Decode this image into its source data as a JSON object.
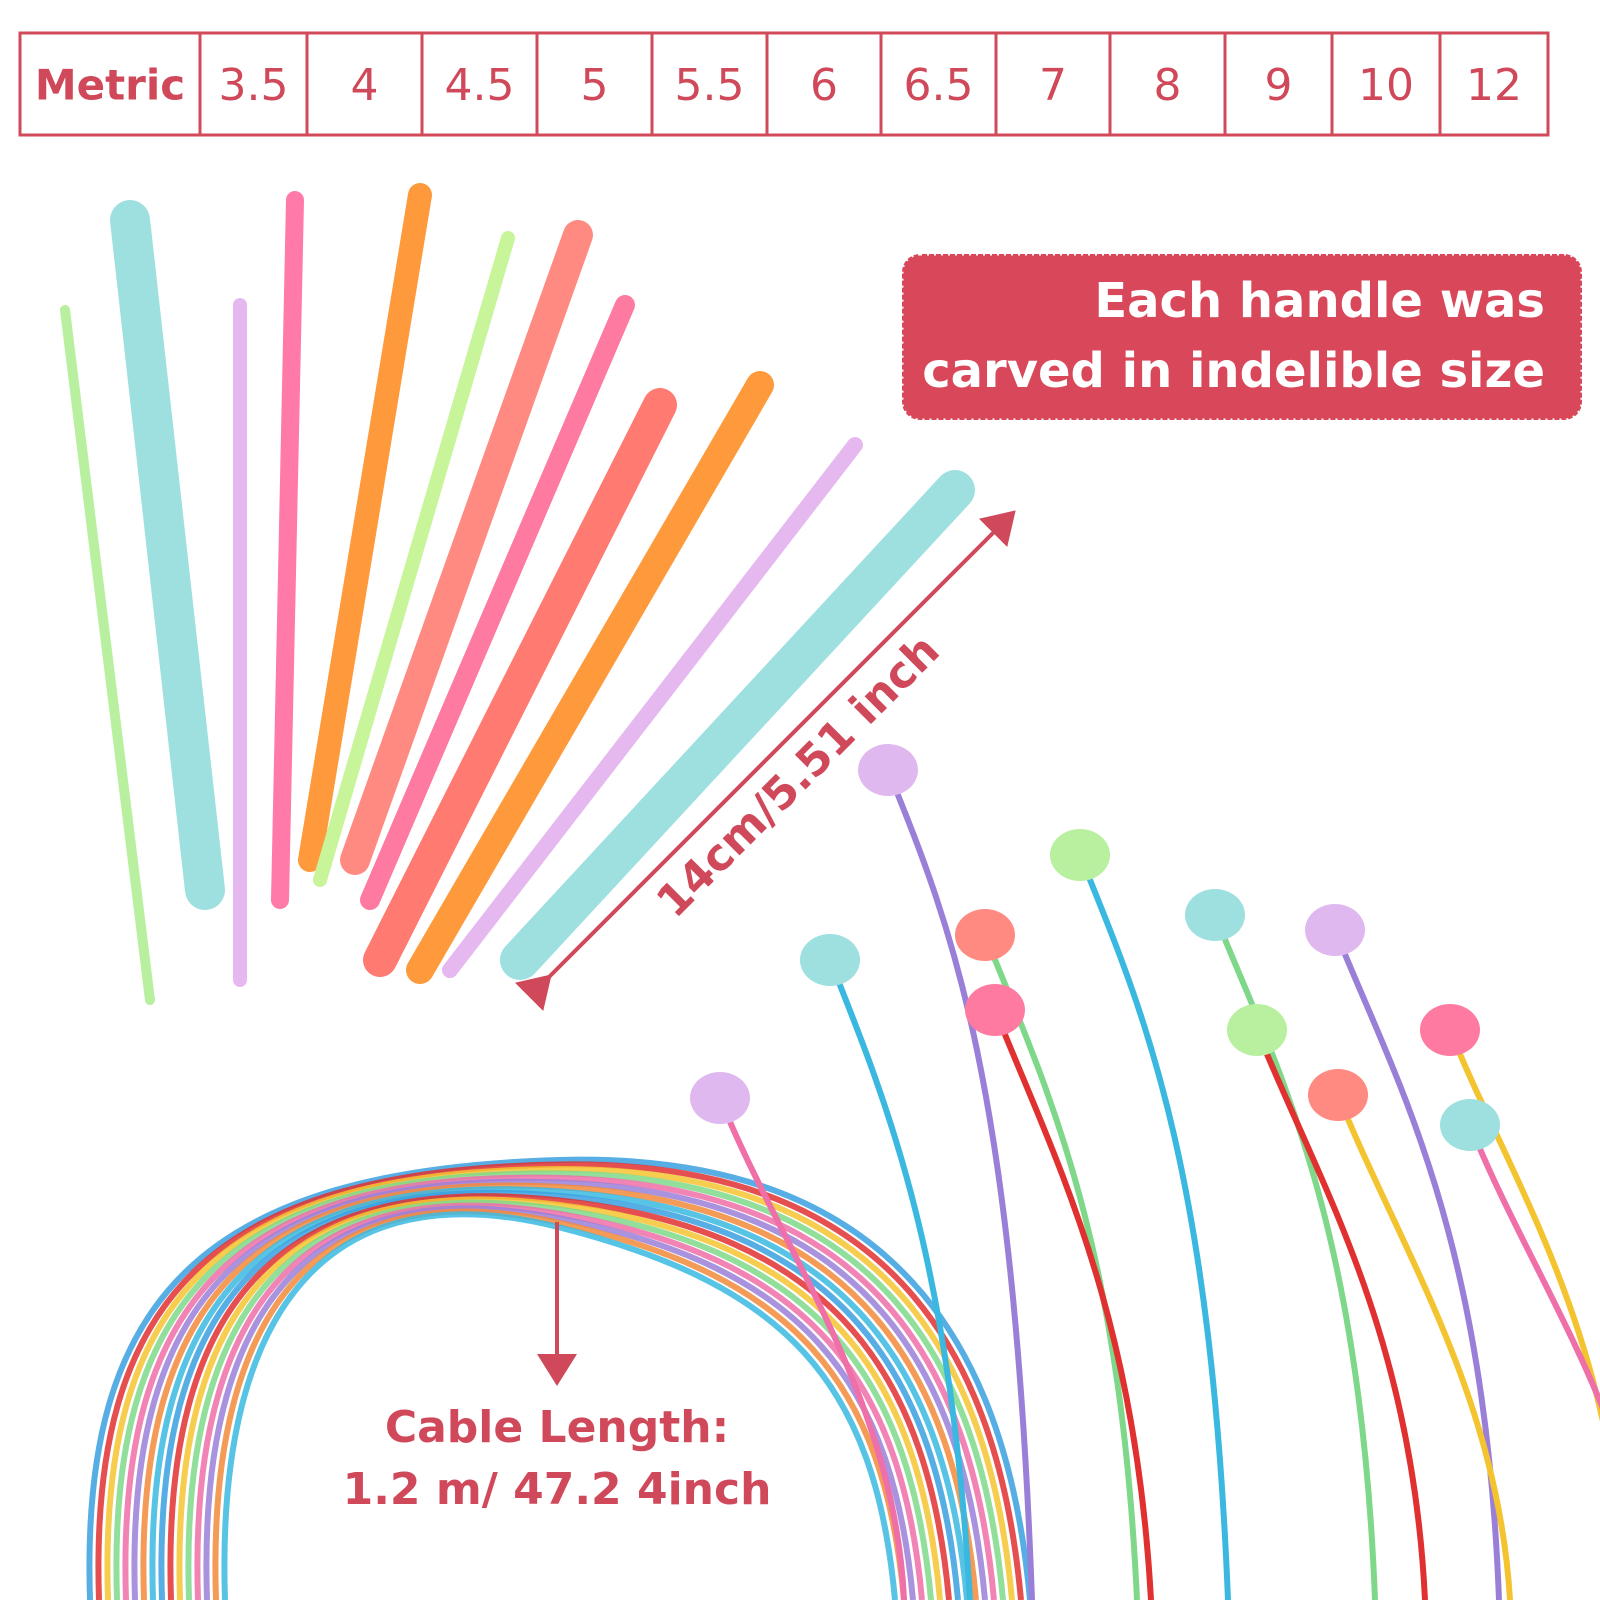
{
  "table": {
    "header": "Metric",
    "cells": [
      "3.5",
      "4",
      "4.5",
      "5",
      "5.5",
      "6",
      "6.5",
      "7",
      "8",
      "9",
      "10",
      "12"
    ]
  },
  "banner": {
    "lines": [
      "Each handle was",
      "carved in indelible size"
    ]
  },
  "handle_length": "14cm/5.51 inch",
  "cable": {
    "lines": [
      "Cable Length:",
      "1.2 m/ 47.2 4inch"
    ]
  }
}
